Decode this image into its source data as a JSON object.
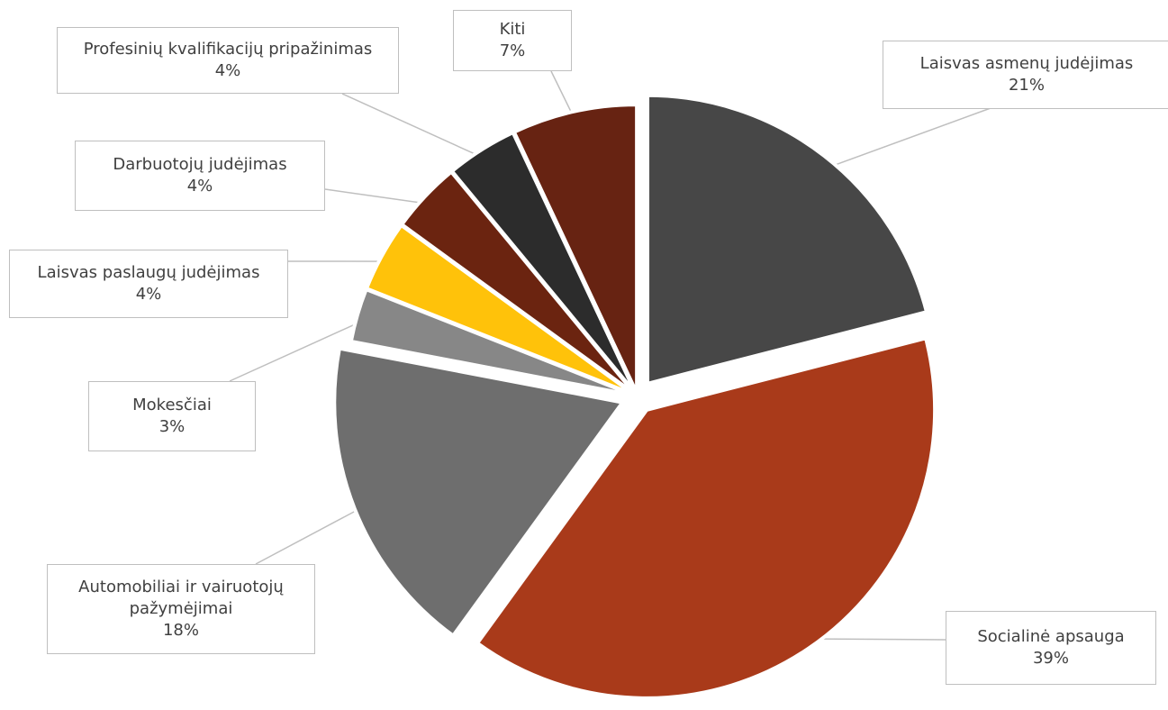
{
  "chart_data": {
    "type": "pie",
    "title": "",
    "slices": [
      {
        "name": "Laisvas asmenų judėjimas",
        "value": 21,
        "pct_label": "21%",
        "color": "#474747"
      },
      {
        "name": "Socialinė apsauga",
        "value": 39,
        "pct_label": "39%",
        "color": "#a93a1a"
      },
      {
        "name": "Automobiliai ir vairuotojų pažymėjimai",
        "value": 18,
        "pct_label": "18%",
        "color": "#6e6e6e"
      },
      {
        "name": "Mokesčiai",
        "value": 3,
        "pct_label": "3%",
        "color": "#878787"
      },
      {
        "name": "Laisvas paslaugų judėjimas",
        "value": 4,
        "pct_label": "4%",
        "color": "#ffc20a"
      },
      {
        "name": "Darbuotojų judėjimas",
        "value": 4,
        "pct_label": "4%",
        "color": "#6b2410"
      },
      {
        "name": "Profesinių kvalifikacijų pripažinimas",
        "value": 4,
        "pct_label": "4%",
        "color": "#2c2c2c"
      },
      {
        "name": "Kiti",
        "value": 7,
        "pct_label": "7%",
        "color": "#672312"
      }
    ],
    "legend": "none",
    "data_labels": "callouts"
  }
}
